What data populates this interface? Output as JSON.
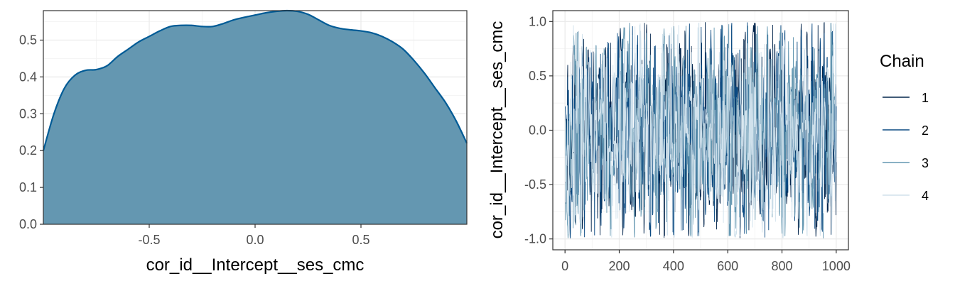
{
  "chart_data": [
    {
      "type": "area",
      "xlabel": "cor_id__Intercept__ses_cmc",
      "ylabel": "",
      "xlim": [
        -1.0,
        1.0
      ],
      "ylim": [
        0.0,
        0.58
      ],
      "xticks": [
        -0.5,
        0.0,
        0.5
      ],
      "xtick_labels": [
        "-0.5",
        "0.0",
        "0.5"
      ],
      "yticks": [
        0.0,
        0.1,
        0.2,
        0.3,
        0.4,
        0.5
      ],
      "ytick_labels": [
        "0.0",
        "0.1",
        "0.2",
        "0.3",
        "0.4",
        "0.5"
      ],
      "grid": true,
      "fill_color": "#6497b1",
      "line_color": "#005b96",
      "x": [
        -1.0,
        -0.95,
        -0.9,
        -0.85,
        -0.8,
        -0.75,
        -0.7,
        -0.65,
        -0.6,
        -0.55,
        -0.5,
        -0.45,
        -0.4,
        -0.35,
        -0.3,
        -0.25,
        -0.2,
        -0.15,
        -0.1,
        -0.05,
        0.0,
        0.05,
        0.1,
        0.15,
        0.2,
        0.25,
        0.3,
        0.35,
        0.4,
        0.45,
        0.5,
        0.55,
        0.6,
        0.65,
        0.7,
        0.75,
        0.8,
        0.85,
        0.9,
        0.95,
        1.0
      ],
      "y": [
        0.2,
        0.3,
        0.37,
        0.405,
        0.418,
        0.42,
        0.43,
        0.455,
        0.475,
        0.495,
        0.51,
        0.525,
        0.537,
        0.54,
        0.54,
        0.537,
        0.537,
        0.545,
        0.555,
        0.562,
        0.568,
        0.574,
        0.578,
        0.58,
        0.578,
        0.57,
        0.555,
        0.54,
        0.532,
        0.528,
        0.525,
        0.52,
        0.51,
        0.495,
        0.475,
        0.445,
        0.41,
        0.37,
        0.33,
        0.28,
        0.22
      ]
    },
    {
      "type": "line",
      "xlabel": "",
      "ylabel": "cor_id__Intercept__ses_cmc",
      "xlim": [
        0,
        1000
      ],
      "ylim": [
        -1.0,
        1.0
      ],
      "xticks": [
        0,
        200,
        400,
        600,
        800,
        1000
      ],
      "xtick_labels": [
        "0",
        "200",
        "400",
        "600",
        "800",
        "1000"
      ],
      "yticks": [
        -1.0,
        -0.5,
        0.0,
        0.5,
        1.0
      ],
      "ytick_labels": [
        "-1.0",
        "-0.5",
        "0.0",
        "0.5",
        "1.0"
      ],
      "grid": true,
      "legend": {
        "title": "Chain",
        "position": "right"
      },
      "iterations": 1000,
      "series": [
        {
          "name": "1",
          "color": "#03254c",
          "seed": 11
        },
        {
          "name": "2",
          "color": "#0b4a82",
          "seed": 23
        },
        {
          "name": "3",
          "color": "#6497b1",
          "seed": 37
        },
        {
          "name": "4",
          "color": "#d0e1ec",
          "seed": 53
        }
      ]
    }
  ]
}
